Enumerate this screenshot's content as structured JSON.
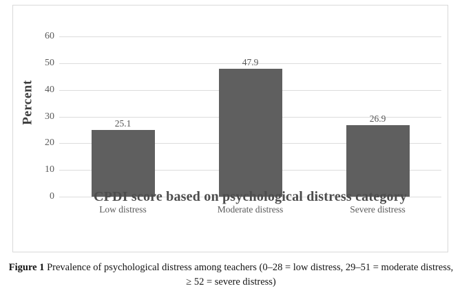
{
  "chart_data": {
    "type": "bar",
    "title": "CPDI score based on psychological distress category",
    "ylabel": "Percent",
    "categories": [
      "Low distress",
      "Moderate distress",
      "Severe distress"
    ],
    "values": [
      25.1,
      47.9,
      26.9
    ],
    "data_labels": [
      "25.1",
      "47.9",
      "26.9"
    ],
    "ylim": [
      0,
      60
    ],
    "yticks": [
      0,
      10,
      20,
      30,
      40,
      50,
      60
    ],
    "grid": true,
    "legend": "none",
    "colors": {
      "bar": "#5f5f5f",
      "gridline": "#dcdcdc",
      "tick_text": "#595959",
      "chart_border": "#d9d9d9",
      "title_text": "#4c4c4c"
    }
  },
  "caption": {
    "figure_label": "Figure 1",
    "line1": " Prevalence of psychological distress among teachers (0–28 = low distress, 29–51 = moderate distress,",
    "line2": "≥ 52 = severe distress)"
  }
}
